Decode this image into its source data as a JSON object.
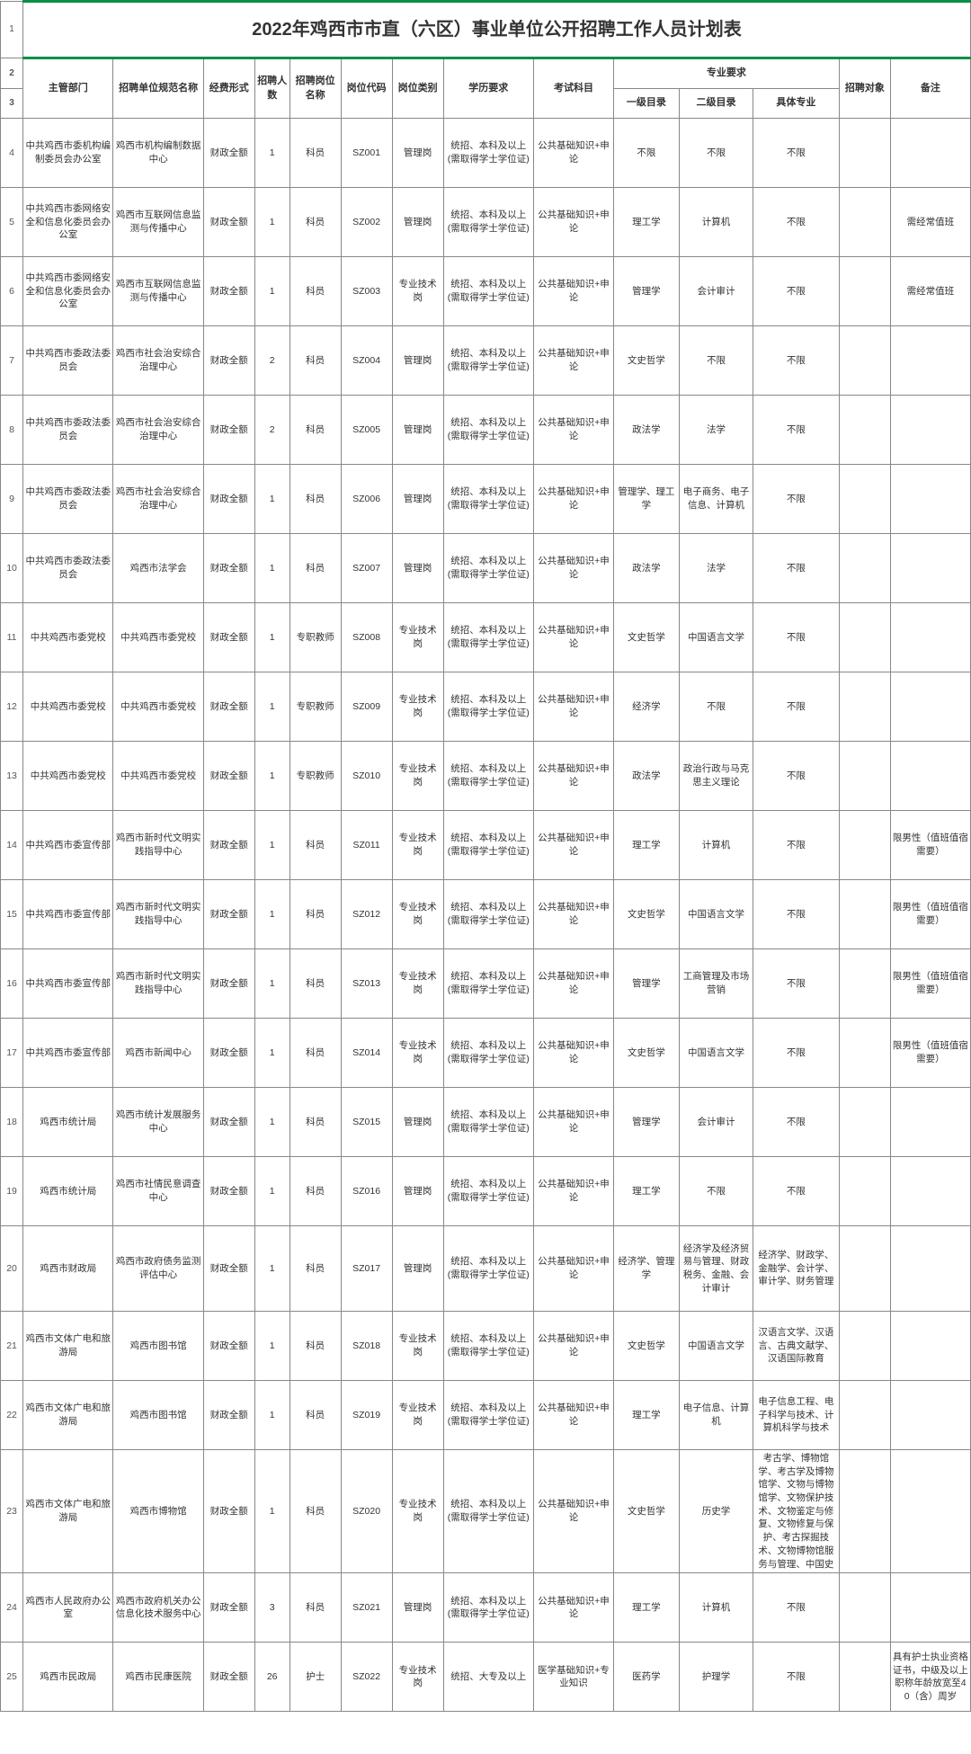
{
  "title": "2022年鸡西市市直（六区）事业单位公开招聘工作人员计划表",
  "headers": {
    "dept": "主管部门",
    "unit": "招聘单位规范名称",
    "funding": "经费形式",
    "count": "招聘人数",
    "postname": "招聘岗位名称",
    "postcode": "岗位代码",
    "posttype": "岗位类别",
    "edu": "学历要求",
    "exam": "考试科目",
    "majorreq": "专业要求",
    "major1": "一级目录",
    "major2": "二级目录",
    "major3": "具体专业",
    "target": "招聘对象",
    "remark": "备注"
  },
  "rows": [
    {
      "n": "4",
      "dept": "中共鸡西市委机构编制委员会办公室",
      "unit": "鸡西市机构编制数据中心",
      "fund": "财政全额",
      "cnt": "1",
      "pname": "科员",
      "pcode": "SZ001",
      "ptype": "管理岗",
      "edu": "统招、本科及以上(需取得学士学位证)",
      "exam": "公共基础知识+申论",
      "m1": "不限",
      "m2": "不限",
      "m3": "不限",
      "tgt": "",
      "rmk": ""
    },
    {
      "n": "5",
      "dept": "中共鸡西市委网络安全和信息化委员会办公室",
      "unit": "鸡西市互联网信息监测与传播中心",
      "fund": "财政全额",
      "cnt": "1",
      "pname": "科员",
      "pcode": "SZ002",
      "ptype": "管理岗",
      "edu": "统招、本科及以上(需取得学士学位证)",
      "exam": "公共基础知识+申论",
      "m1": "理工学",
      "m2": "计算机",
      "m3": "不限",
      "tgt": "",
      "rmk": "需经常值班"
    },
    {
      "n": "6",
      "dept": "中共鸡西市委网络安全和信息化委员会办公室",
      "unit": "鸡西市互联网信息监测与传播中心",
      "fund": "财政全额",
      "cnt": "1",
      "pname": "科员",
      "pcode": "SZ003",
      "ptype": "专业技术岗",
      "edu": "统招、本科及以上(需取得学士学位证)",
      "exam": "公共基础知识+申论",
      "m1": "管理学",
      "m2": "会计审计",
      "m3": "不限",
      "tgt": "",
      "rmk": "需经常值班"
    },
    {
      "n": "7",
      "dept": "中共鸡西市委政法委员会",
      "unit": "鸡西市社会治安综合治理中心",
      "fund": "财政全额",
      "cnt": "2",
      "pname": "科员",
      "pcode": "SZ004",
      "ptype": "管理岗",
      "edu": "统招、本科及以上(需取得学士学位证)",
      "exam": "公共基础知识+申论",
      "m1": "文史哲学",
      "m2": "不限",
      "m3": "不限",
      "tgt": "",
      "rmk": ""
    },
    {
      "n": "8",
      "dept": "中共鸡西市委政法委员会",
      "unit": "鸡西市社会治安综合治理中心",
      "fund": "财政全额",
      "cnt": "2",
      "pname": "科员",
      "pcode": "SZ005",
      "ptype": "管理岗",
      "edu": "统招、本科及以上(需取得学士学位证)",
      "exam": "公共基础知识+申论",
      "m1": "政法学",
      "m2": "法学",
      "m3": "不限",
      "tgt": "",
      "rmk": ""
    },
    {
      "n": "9",
      "dept": "中共鸡西市委政法委员会",
      "unit": "鸡西市社会治安综合治理中心",
      "fund": "财政全额",
      "cnt": "1",
      "pname": "科员",
      "pcode": "SZ006",
      "ptype": "管理岗",
      "edu": "统招、本科及以上(需取得学士学位证)",
      "exam": "公共基础知识+申论",
      "m1": "管理学、理工学",
      "m2": "电子商务、电子信息、计算机",
      "m3": "不限",
      "tgt": "",
      "rmk": ""
    },
    {
      "n": "10",
      "dept": "中共鸡西市委政法委员会",
      "unit": "鸡西市法学会",
      "fund": "财政全额",
      "cnt": "1",
      "pname": "科员",
      "pcode": "SZ007",
      "ptype": "管理岗",
      "edu": "统招、本科及以上(需取得学士学位证)",
      "exam": "公共基础知识+申论",
      "m1": "政法学",
      "m2": "法学",
      "m3": "不限",
      "tgt": "",
      "rmk": ""
    },
    {
      "n": "11",
      "dept": "中共鸡西市委党校",
      "unit": "中共鸡西市委党校",
      "fund": "财政全额",
      "cnt": "1",
      "pname": "专职教师",
      "pcode": "SZ008",
      "ptype": "专业技术岗",
      "edu": "统招、本科及以上(需取得学士学位证)",
      "exam": "公共基础知识+申论",
      "m1": "文史哲学",
      "m2": "中国语言文学",
      "m3": "不限",
      "tgt": "",
      "rmk": ""
    },
    {
      "n": "12",
      "dept": "中共鸡西市委党校",
      "unit": "中共鸡西市委党校",
      "fund": "财政全额",
      "cnt": "1",
      "pname": "专职教师",
      "pcode": "SZ009",
      "ptype": "专业技术岗",
      "edu": "统招、本科及以上(需取得学士学位证)",
      "exam": "公共基础知识+申论",
      "m1": "经济学",
      "m2": "不限",
      "m3": "不限",
      "tgt": "",
      "rmk": ""
    },
    {
      "n": "13",
      "dept": "中共鸡西市委党校",
      "unit": "中共鸡西市委党校",
      "fund": "财政全额",
      "cnt": "1",
      "pname": "专职教师",
      "pcode": "SZ010",
      "ptype": "专业技术岗",
      "edu": "统招、本科及以上(需取得学士学位证)",
      "exam": "公共基础知识+申论",
      "m1": "政法学",
      "m2": "政治行政与马克思主义理论",
      "m3": "不限",
      "tgt": "",
      "rmk": ""
    },
    {
      "n": "14",
      "dept": "中共鸡西市委宣传部",
      "unit": "鸡西市新时代文明实践指导中心",
      "fund": "财政全额",
      "cnt": "1",
      "pname": "科员",
      "pcode": "SZ011",
      "ptype": "专业技术岗",
      "edu": "统招、本科及以上(需取得学士学位证)",
      "exam": "公共基础知识+申论",
      "m1": "理工学",
      "m2": "计算机",
      "m3": "不限",
      "tgt": "",
      "rmk": "限男性（值班值宿需要）"
    },
    {
      "n": "15",
      "dept": "中共鸡西市委宣传部",
      "unit": "鸡西市新时代文明实践指导中心",
      "fund": "财政全额",
      "cnt": "1",
      "pname": "科员",
      "pcode": "SZ012",
      "ptype": "专业技术岗",
      "edu": "统招、本科及以上(需取得学士学位证)",
      "exam": "公共基础知识+申论",
      "m1": "文史哲学",
      "m2": "中国语言文学",
      "m3": "不限",
      "tgt": "",
      "rmk": "限男性（值班值宿需要）"
    },
    {
      "n": "16",
      "dept": "中共鸡西市委宣传部",
      "unit": "鸡西市新时代文明实践指导中心",
      "fund": "财政全额",
      "cnt": "1",
      "pname": "科员",
      "pcode": "SZ013",
      "ptype": "专业技术岗",
      "edu": "统招、本科及以上(需取得学士学位证)",
      "exam": "公共基础知识+申论",
      "m1": "管理学",
      "m2": "工商管理及市场营销",
      "m3": "不限",
      "tgt": "",
      "rmk": "限男性（值班值宿需要）"
    },
    {
      "n": "17",
      "dept": "中共鸡西市委宣传部",
      "unit": "鸡西市新闻中心",
      "fund": "财政全额",
      "cnt": "1",
      "pname": "科员",
      "pcode": "SZ014",
      "ptype": "专业技术岗",
      "edu": "统招、本科及以上(需取得学士学位证)",
      "exam": "公共基础知识+申论",
      "m1": "文史哲学",
      "m2": "中国语言文学",
      "m3": "不限",
      "tgt": "",
      "rmk": "限男性（值班值宿需要）"
    },
    {
      "n": "18",
      "dept": "鸡西市统计局",
      "unit": "鸡西市统计发展服务中心",
      "fund": "财政全额",
      "cnt": "1",
      "pname": "科员",
      "pcode": "SZ015",
      "ptype": "管理岗",
      "edu": "统招、本科及以上(需取得学士学位证)",
      "exam": "公共基础知识+申论",
      "m1": "管理学",
      "m2": "会计审计",
      "m3": "不限",
      "tgt": "",
      "rmk": ""
    },
    {
      "n": "19",
      "dept": "鸡西市统计局",
      "unit": "鸡西市社情民意调查中心",
      "fund": "财政全额",
      "cnt": "1",
      "pname": "科员",
      "pcode": "SZ016",
      "ptype": "管理岗",
      "edu": "统招、本科及以上(需取得学士学位证)",
      "exam": "公共基础知识+申论",
      "m1": "理工学",
      "m2": "不限",
      "m3": "不限",
      "tgt": "",
      "rmk": ""
    },
    {
      "n": "20",
      "dept": "鸡西市财政局",
      "unit": "鸡西市政府债务监测评估中心",
      "fund": "财政全额",
      "cnt": "1",
      "pname": "科员",
      "pcode": "SZ017",
      "ptype": "管理岗",
      "edu": "统招、本科及以上(需取得学士学位证)",
      "exam": "公共基础知识+申论",
      "m1": "经济学、管理学",
      "m2": "经济学及经济贸易与管理、财政税务、金融、会计审计",
      "m3": "经济学、财政学、金融学、会计学、审计学、财务管理",
      "tgt": "",
      "rmk": ""
    },
    {
      "n": "21",
      "dept": "鸡西市文体广电和旅游局",
      "unit": "鸡西市图书馆",
      "fund": "财政全额",
      "cnt": "1",
      "pname": "科员",
      "pcode": "SZ018",
      "ptype": "专业技术岗",
      "edu": "统招、本科及以上(需取得学士学位证)",
      "exam": "公共基础知识+申论",
      "m1": "文史哲学",
      "m2": "中国语言文学",
      "m3": "汉语言文学、汉语言、古典文献学、汉语国际教育",
      "tgt": "",
      "rmk": ""
    },
    {
      "n": "22",
      "dept": "鸡西市文体广电和旅游局",
      "unit": "鸡西市图书馆",
      "fund": "财政全额",
      "cnt": "1",
      "pname": "科员",
      "pcode": "SZ019",
      "ptype": "专业技术岗",
      "edu": "统招、本科及以上(需取得学士学位证)",
      "exam": "公共基础知识+申论",
      "m1": "理工学",
      "m2": "电子信息、计算机",
      "m3": "电子信息工程、电子科学与技术、计算机科学与技术",
      "tgt": "",
      "rmk": ""
    },
    {
      "n": "23",
      "dept": "鸡西市文体广电和旅游局",
      "unit": "鸡西市博物馆",
      "fund": "财政全额",
      "cnt": "1",
      "pname": "科员",
      "pcode": "SZ020",
      "ptype": "专业技术岗",
      "edu": "统招、本科及以上(需取得学士学位证)",
      "exam": "公共基础知识+申论",
      "m1": "文史哲学",
      "m2": "历史学",
      "m3": "考古学、博物馆学、考古学及博物馆学、文物与博物馆学、文物保护技术、文物鉴定与修复、文物修复与保护、考古探掘技术、文物博物馆服务与管理、中国史",
      "tgt": "",
      "rmk": ""
    },
    {
      "n": "24",
      "dept": "鸡西市人民政府办公室",
      "unit": "鸡西市政府机关办公信息化技术服务中心",
      "fund": "财政全额",
      "cnt": "3",
      "pname": "科员",
      "pcode": "SZ021",
      "ptype": "管理岗",
      "edu": "统招、本科及以上(需取得学士学位证)",
      "exam": "公共基础知识+申论",
      "m1": "理工学",
      "m2": "计算机",
      "m3": "不限",
      "tgt": "",
      "rmk": ""
    },
    {
      "n": "25",
      "dept": "鸡西市民政局",
      "unit": "鸡西市民康医院",
      "fund": "财政全额",
      "cnt": "26",
      "pname": "护士",
      "pcode": "SZ022",
      "ptype": "专业技术岗",
      "edu": "统招、大专及以上",
      "exam": "医学基础知识+专业知识",
      "m1": "医药学",
      "m2": "护理学",
      "m3": "不限",
      "tgt": "",
      "rmk": "具有护士执业资格证书，中级及以上职称年龄放宽至40（含）周岁"
    }
  ],
  "colwidths": {
    "rownum": 22,
    "dept": 88,
    "unit": 88,
    "fund": 50,
    "cnt": 34,
    "pname": 50,
    "pcode": 50,
    "ptype": 50,
    "edu": 88,
    "exam": 78,
    "m1": 64,
    "m2": 72,
    "m3": 84,
    "tgt": 50,
    "rmk": 78
  }
}
